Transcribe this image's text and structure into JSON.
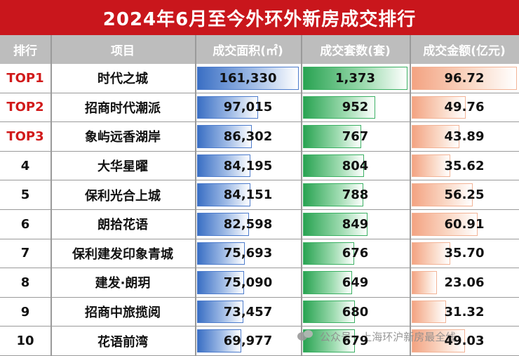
{
  "title": "2024年6月至今外环外新房成交排行",
  "columns": [
    "排行",
    "项目",
    "成交面积(㎡)",
    "成交套数(套)",
    "成交金额(亿元)"
  ],
  "chart_data": {
    "type": "table",
    "rows": [
      {
        "rank": "TOP1",
        "project": "时代之城",
        "area": 161330,
        "area_label": "161,330",
        "units": 1373,
        "units_label": "1,373",
        "amount": 96.72,
        "amount_label": "96.72"
      },
      {
        "rank": "TOP2",
        "project": "招商时代潮派",
        "area": 97015,
        "area_label": "97,015",
        "units": 952,
        "units_label": "952",
        "amount": 49.76,
        "amount_label": "49.76"
      },
      {
        "rank": "TOP3",
        "project": "象屿远香湖岸",
        "area": 86302,
        "area_label": "86,302",
        "units": 767,
        "units_label": "767",
        "amount": 43.89,
        "amount_label": "43.89"
      },
      {
        "rank": "4",
        "project": "大华星曜",
        "area": 84195,
        "area_label": "84,195",
        "units": 804,
        "units_label": "804",
        "amount": 35.62,
        "amount_label": "35.62"
      },
      {
        "rank": "5",
        "project": "保利光合上城",
        "area": 84151,
        "area_label": "84,151",
        "units": 788,
        "units_label": "788",
        "amount": 56.25,
        "amount_label": "56.25"
      },
      {
        "rank": "6",
        "project": "朗拾花语",
        "area": 82598,
        "area_label": "82,598",
        "units": 849,
        "units_label": "849",
        "amount": 60.91,
        "amount_label": "60.91"
      },
      {
        "rank": "7",
        "project": "保利建发印象青城",
        "area": 75693,
        "area_label": "75,693",
        "units": 676,
        "units_label": "676",
        "amount": 35.7,
        "amount_label": "35.70"
      },
      {
        "rank": "8",
        "project": "建发·朗玥",
        "area": 75090,
        "area_label": "75,090",
        "units": 649,
        "units_label": "649",
        "amount": 23.06,
        "amount_label": "23.06"
      },
      {
        "rank": "9",
        "project": "招商中旅揽阅",
        "area": 73457,
        "area_label": "73,457",
        "units": 680,
        "units_label": "680",
        "amount": 31.32,
        "amount_label": "31.32"
      },
      {
        "rank": "10",
        "project": "花语前湾",
        "area": 69977,
        "area_label": "69,977",
        "units": 679,
        "units_label": "679",
        "amount": 49.03,
        "amount_label": "49.03"
      }
    ]
  },
  "watermark": {
    "text": "公众号 · 上海环沪新房最全线",
    "icon": "wechat-icon"
  },
  "colors": {
    "title_bg": "#c9161c",
    "header_bg": "#bdbdbd",
    "top_rank": "#d11a1a",
    "area_bar": "#3a6fc4",
    "units_bar": "#29a352",
    "amount_bar": "#f3a382"
  }
}
